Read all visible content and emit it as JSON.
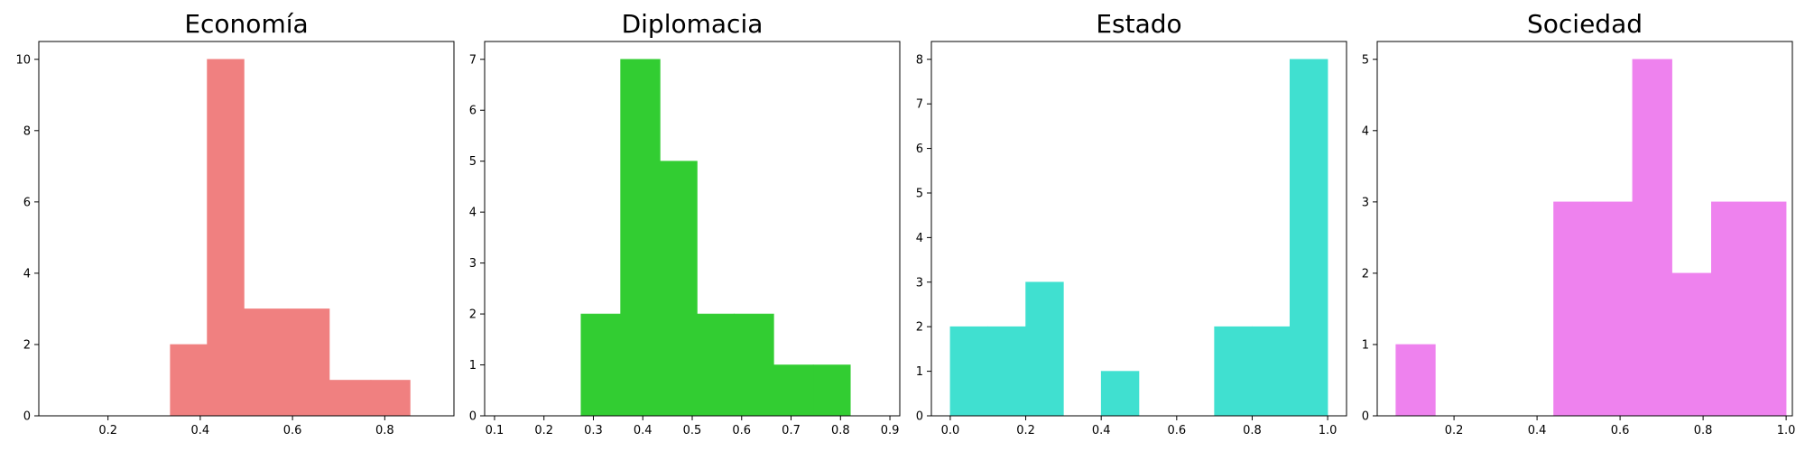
{
  "chart_data": [
    {
      "type": "bar",
      "title": "Economía",
      "color": "#F08080",
      "xlim": [
        0.05,
        0.95
      ],
      "ylim": [
        0,
        10.5
      ],
      "xticks": [
        0.2,
        0.4,
        0.6,
        0.8
      ],
      "xtick_labels": [
        "0.2",
        "0.4",
        "0.6",
        "0.8"
      ],
      "yticks": [
        0,
        2,
        4,
        6,
        8,
        10
      ],
      "ytick_labels": [
        "0",
        "2",
        "4",
        "6",
        "8",
        "10"
      ],
      "bins": [
        {
          "x0": 0.335,
          "x1": 0.415,
          "count": 2
        },
        {
          "x0": 0.415,
          "x1": 0.495,
          "count": 10
        },
        {
          "x0": 0.495,
          "x1": 0.59,
          "count": 3
        },
        {
          "x0": 0.59,
          "x1": 0.68,
          "count": 3
        },
        {
          "x0": 0.68,
          "x1": 0.77,
          "count": 1
        },
        {
          "x0": 0.77,
          "x1": 0.855,
          "count": 1
        }
      ]
    },
    {
      "type": "bar",
      "title": "Diplomacia",
      "color": "#32CD32",
      "xlim": [
        0.08,
        0.92
      ],
      "ylim": [
        0,
        7.35
      ],
      "xticks": [
        0.1,
        0.2,
        0.3,
        0.4,
        0.5,
        0.6,
        0.7,
        0.8,
        0.9
      ],
      "xtick_labels": [
        "0.1",
        "0.2",
        "0.3",
        "0.4",
        "0.5",
        "0.6",
        "0.7",
        "0.8",
        "0.9"
      ],
      "yticks": [
        0,
        1,
        2,
        3,
        4,
        5,
        6,
        7
      ],
      "ytick_labels": [
        "0",
        "1",
        "2",
        "3",
        "4",
        "5",
        "6",
        "7"
      ],
      "bins": [
        {
          "x0": 0.275,
          "x1": 0.355,
          "count": 2
        },
        {
          "x0": 0.355,
          "x1": 0.435,
          "count": 7
        },
        {
          "x0": 0.435,
          "x1": 0.51,
          "count": 5
        },
        {
          "x0": 0.51,
          "x1": 0.585,
          "count": 2
        },
        {
          "x0": 0.585,
          "x1": 0.665,
          "count": 2
        },
        {
          "x0": 0.665,
          "x1": 0.745,
          "count": 1
        },
        {
          "x0": 0.745,
          "x1": 0.82,
          "count": 1
        }
      ]
    },
    {
      "type": "bar",
      "title": "Estado",
      "color": "#40E0D0",
      "xlim": [
        -0.05,
        1.05
      ],
      "ylim": [
        0,
        8.4
      ],
      "xticks": [
        0.0,
        0.2,
        0.4,
        0.6,
        0.8,
        1.0
      ],
      "xtick_labels": [
        "0.0",
        "0.2",
        "0.4",
        "0.6",
        "0.8",
        "1.0"
      ],
      "yticks": [
        0,
        1,
        2,
        3,
        4,
        5,
        6,
        7,
        8
      ],
      "ytick_labels": [
        "0",
        "1",
        "2",
        "3",
        "4",
        "5",
        "6",
        "7",
        "8"
      ],
      "bins": [
        {
          "x0": 0.0,
          "x1": 0.1,
          "count": 2
        },
        {
          "x0": 0.1,
          "x1": 0.2,
          "count": 2
        },
        {
          "x0": 0.2,
          "x1": 0.3,
          "count": 3
        },
        {
          "x0": 0.4,
          "x1": 0.5,
          "count": 1
        },
        {
          "x0": 0.7,
          "x1": 0.8,
          "count": 2
        },
        {
          "x0": 0.8,
          "x1": 0.9,
          "count": 2
        },
        {
          "x0": 0.9,
          "x1": 1.0,
          "count": 8
        }
      ]
    },
    {
      "type": "bar",
      "title": "Sociedad",
      "color": "#EE82EE",
      "xlim": [
        0.015,
        1.015
      ],
      "ylim": [
        0,
        5.25
      ],
      "xticks": [
        0.2,
        0.4,
        0.6,
        0.8,
        1.0
      ],
      "xtick_labels": [
        "0.2",
        "0.4",
        "0.6",
        "0.8",
        "1.0"
      ],
      "yticks": [
        0,
        1,
        2,
        3,
        4,
        5
      ],
      "ytick_labels": [
        "0",
        "1",
        "2",
        "3",
        "4",
        "5"
      ],
      "bins": [
        {
          "x0": 0.06,
          "x1": 0.155,
          "count": 1
        },
        {
          "x0": 0.44,
          "x1": 0.535,
          "count": 3
        },
        {
          "x0": 0.535,
          "x1": 0.63,
          "count": 3
        },
        {
          "x0": 0.63,
          "x1": 0.725,
          "count": 5
        },
        {
          "x0": 0.725,
          "x1": 0.82,
          "count": 2
        },
        {
          "x0": 0.82,
          "x1": 0.915,
          "count": 3
        },
        {
          "x0": 0.915,
          "x1": 1.0,
          "count": 3
        }
      ]
    }
  ]
}
